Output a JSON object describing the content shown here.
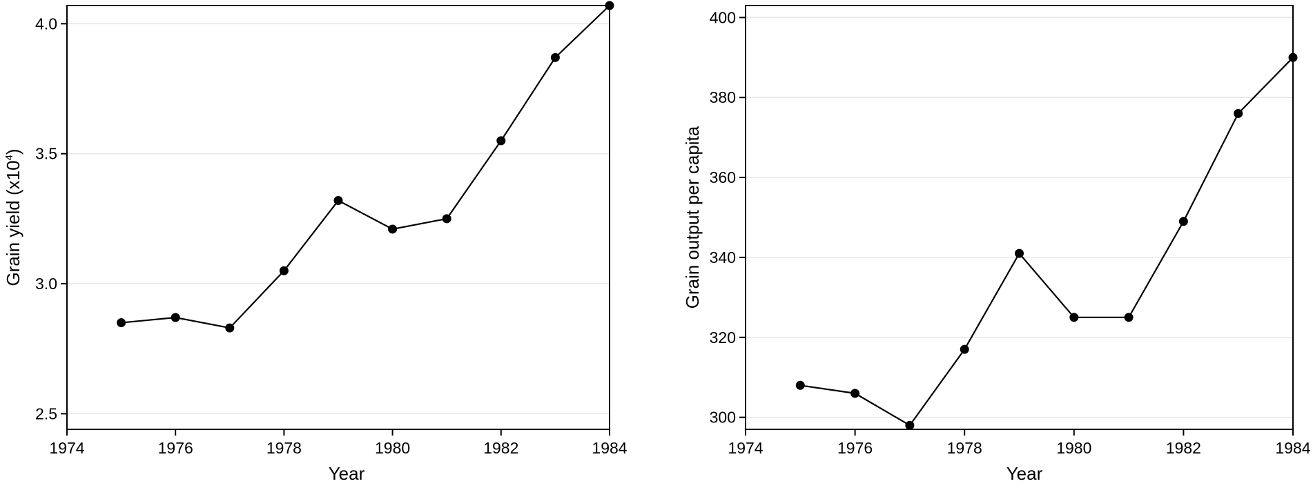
{
  "chart_data": [
    {
      "type": "line",
      "xlabel": "Year",
      "ylabel": "Grain yield (x10",
      "ylabel_sup": "4",
      "ylabel_close": ")",
      "xlim": [
        1974,
        1984
      ],
      "ylim": [
        2.44,
        4.07
      ],
      "xticks": [
        1974,
        1976,
        1978,
        1980,
        1982,
        1984
      ],
      "yticks": [
        2.5,
        3.0,
        3.5,
        4.0
      ],
      "ytick_labels": [
        "2.5",
        "3.0",
        "3.5",
        "4.0"
      ],
      "grid": true,
      "series": [
        {
          "x": [
            1975,
            1976,
            1977,
            1978,
            1979,
            1980,
            1981,
            1982,
            1983,
            1984
          ],
          "y": [
            2.85,
            2.87,
            2.83,
            3.05,
            3.32,
            3.21,
            3.25,
            3.55,
            3.87,
            4.07
          ]
        }
      ]
    },
    {
      "type": "line",
      "xlabel": "Year",
      "ylabel": "Grain output per capita",
      "xlim": [
        1974,
        1984
      ],
      "ylim": [
        297,
        403
      ],
      "xticks": [
        1974,
        1976,
        1978,
        1980,
        1982,
        1984
      ],
      "yticks": [
        300,
        320,
        340,
        360,
        380,
        400
      ],
      "ytick_labels": [
        "300",
        "320",
        "340",
        "360",
        "380",
        "400"
      ],
      "grid": true,
      "series": [
        {
          "x": [
            1975,
            1976,
            1977,
            1978,
            1979,
            1980,
            1981,
            1982,
            1983,
            1984
          ],
          "y": [
            308,
            306,
            298,
            317,
            341,
            325,
            325,
            349,
            376,
            390
          ]
        }
      ]
    }
  ]
}
